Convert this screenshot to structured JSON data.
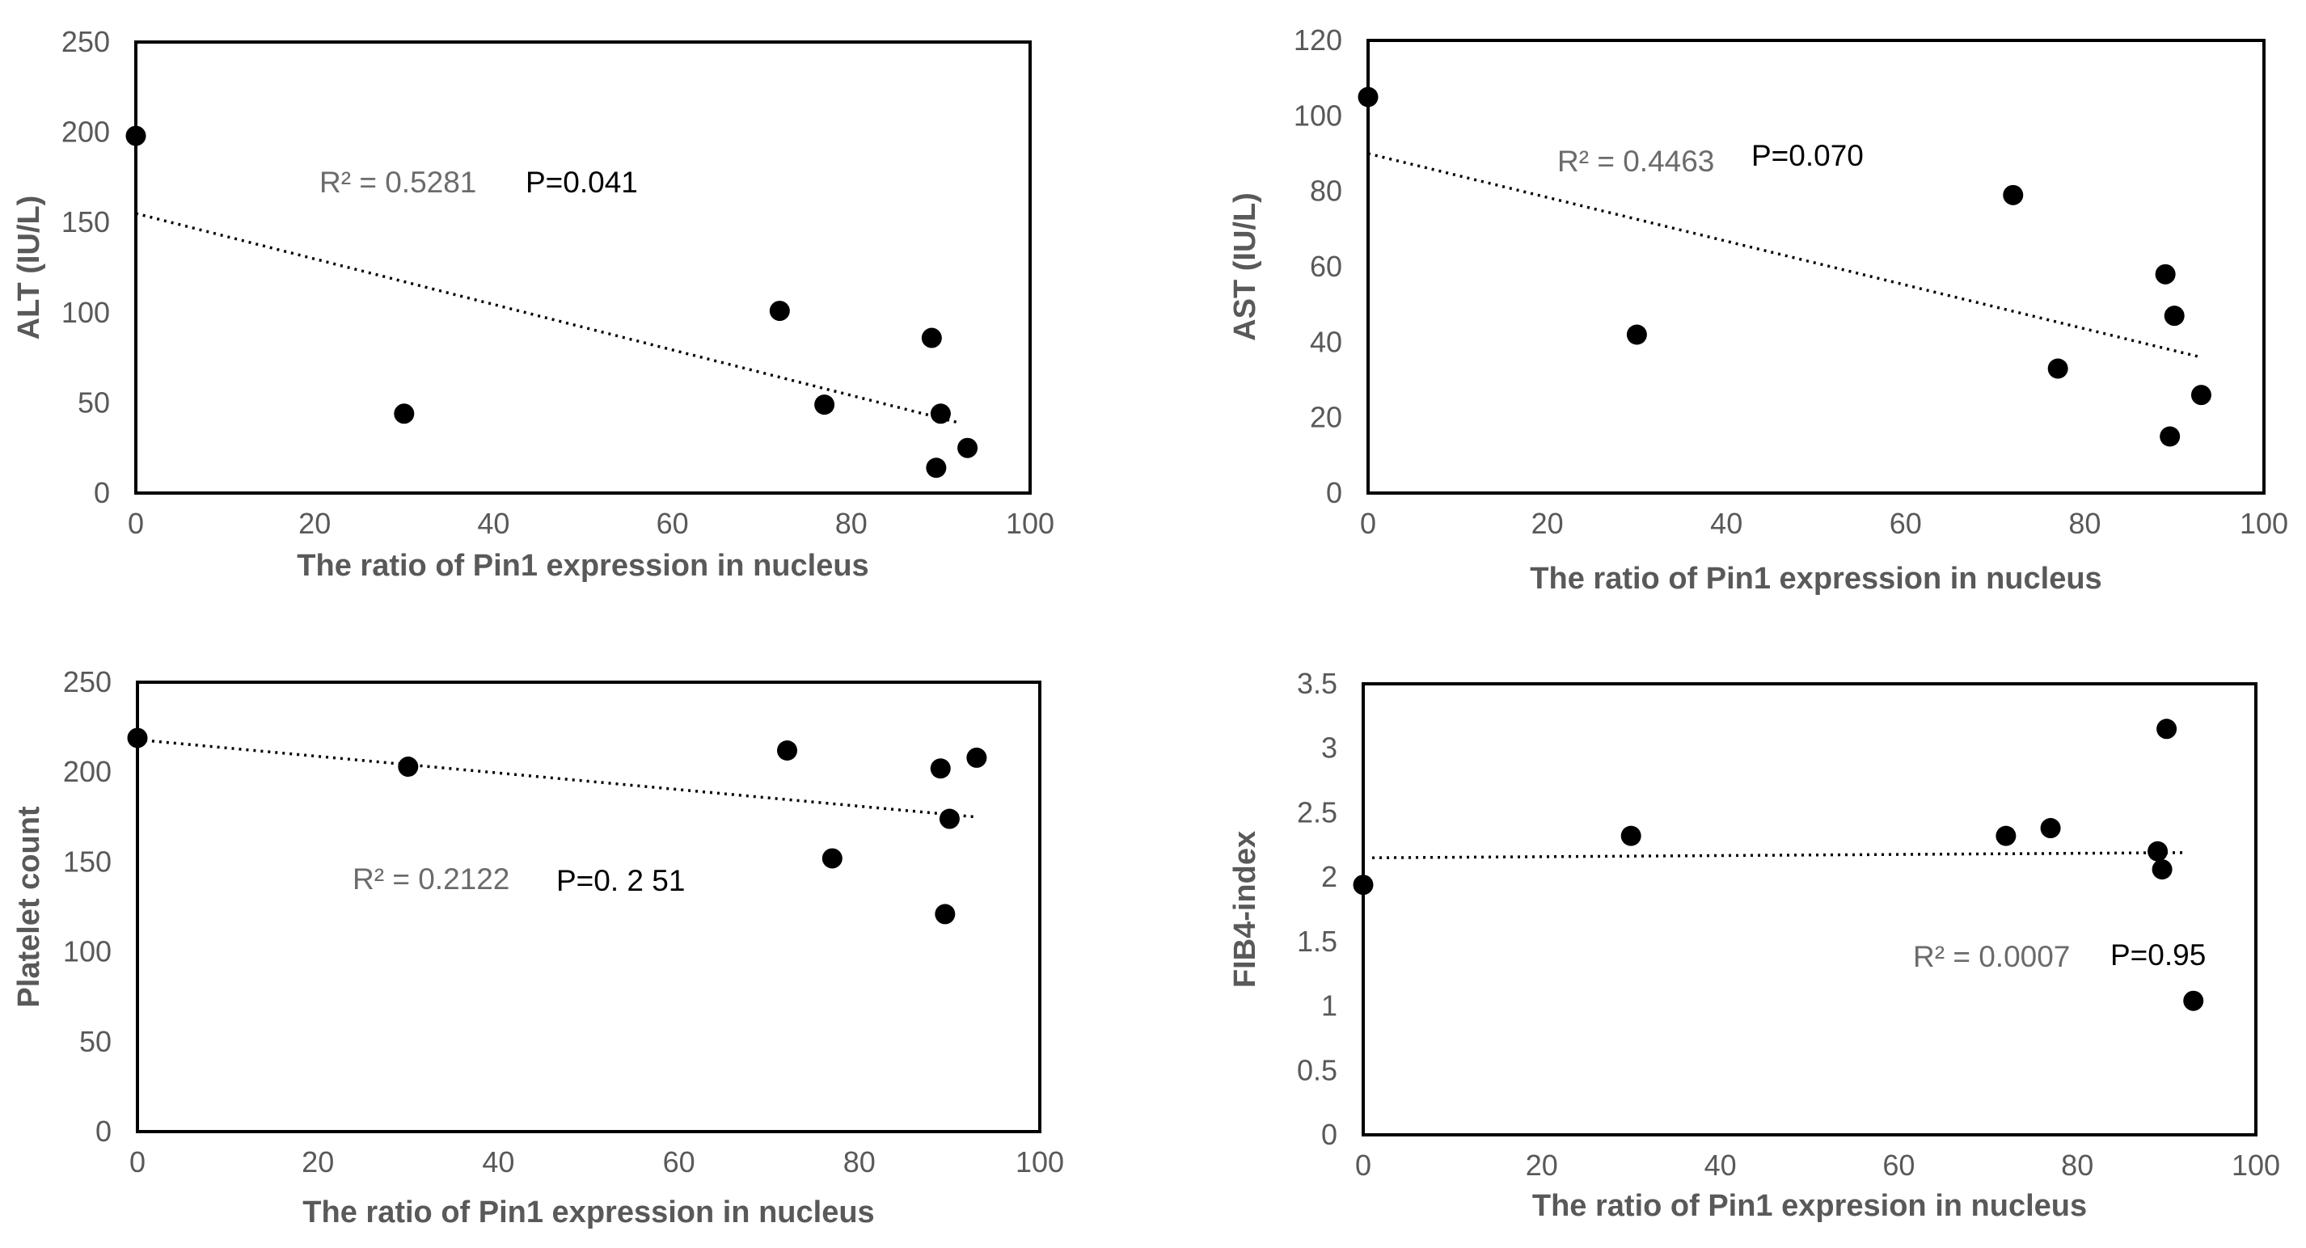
{
  "chart_data": [
    {
      "type": "scatter",
      "xlabel": "The ratio of Pin1 expression in nucleus",
      "ylabel": "ALT (IU/L)",
      "xlim": [
        0,
        100
      ],
      "ylim": [
        0,
        250
      ],
      "xticks": [
        "0",
        "20",
        "40",
        "60",
        "80",
        "100"
      ],
      "yticks": [
        "0",
        "50",
        "100",
        "150",
        "200",
        "250"
      ],
      "points": [
        [
          0,
          198
        ],
        [
          30,
          44
        ],
        [
          72,
          101
        ],
        [
          77,
          49
        ],
        [
          89,
          86
        ],
        [
          90,
          44
        ],
        [
          89.5,
          14
        ],
        [
          93,
          25
        ]
      ],
      "trendline": {
        "x": [
          0,
          92
        ],
        "y": [
          155,
          39
        ]
      },
      "r2_text": "R² = 0.5281",
      "p_text": "P=0.041"
    },
    {
      "type": "scatter",
      "xlabel": "The ratio of Pin1 expression in nucleus",
      "ylabel": "AST (IU/L)",
      "xlim": [
        0,
        100
      ],
      "ylim": [
        0,
        120
      ],
      "xticks": [
        "0",
        "20",
        "40",
        "60",
        "80",
        "100"
      ],
      "yticks": [
        "0",
        "20",
        "40",
        "60",
        "80",
        "100",
        "120"
      ],
      "points": [
        [
          0,
          105
        ],
        [
          30,
          42
        ],
        [
          72,
          79
        ],
        [
          77,
          33
        ],
        [
          89,
          58
        ],
        [
          90,
          47
        ],
        [
          89.5,
          15
        ],
        [
          93,
          26
        ]
      ],
      "trendline": {
        "x": [
          0,
          93
        ],
        "y": [
          90,
          36
        ]
      },
      "r2_text": "R² = 0.4463",
      "p_text": "P=0.070"
    },
    {
      "type": "scatter",
      "xlabel": "The ratio of Pin1 expression in nucleus",
      "ylabel": "Platelet count",
      "xlim": [
        0,
        100
      ],
      "ylim": [
        0,
        250
      ],
      "xticks": [
        "0",
        "20",
        "40",
        "60",
        "80",
        "100"
      ],
      "yticks": [
        "0",
        "50",
        "100",
        "150",
        "200",
        "250"
      ],
      "points": [
        [
          0,
          219
        ],
        [
          30,
          203
        ],
        [
          72,
          212
        ],
        [
          77,
          152
        ],
        [
          89,
          202
        ],
        [
          90,
          174
        ],
        [
          89.5,
          121
        ],
        [
          93,
          208
        ]
      ],
      "trendline": {
        "x": [
          0,
          93
        ],
        "y": [
          218,
          175
        ]
      },
      "r2_text": "R² = 0.2122",
      "p_text": "P=0. 2 51"
    },
    {
      "type": "scatter",
      "xlabel": "The ratio of Pin1 expresion in nucleus",
      "ylabel": "FIB4-index",
      "xlim": [
        0,
        100
      ],
      "ylim": [
        0,
        3.5
      ],
      "xticks": [
        "0",
        "20",
        "40",
        "60",
        "80",
        "100"
      ],
      "yticks": [
        "0",
        "0.5",
        "1",
        "1.5",
        "2",
        "2.5",
        "3",
        "3.5"
      ],
      "points": [
        [
          0,
          1.94
        ],
        [
          30,
          2.32
        ],
        [
          72,
          2.32
        ],
        [
          77,
          2.38
        ],
        [
          89,
          2.2
        ],
        [
          89.5,
          2.06
        ],
        [
          90,
          3.15
        ],
        [
          93,
          1.04
        ]
      ],
      "trendline": {
        "x": [
          1,
          92
        ],
        "y": [
          2.15,
          2.19
        ]
      },
      "r2_text": "R² = 0.0007",
      "p_text": "P=0.95"
    }
  ]
}
